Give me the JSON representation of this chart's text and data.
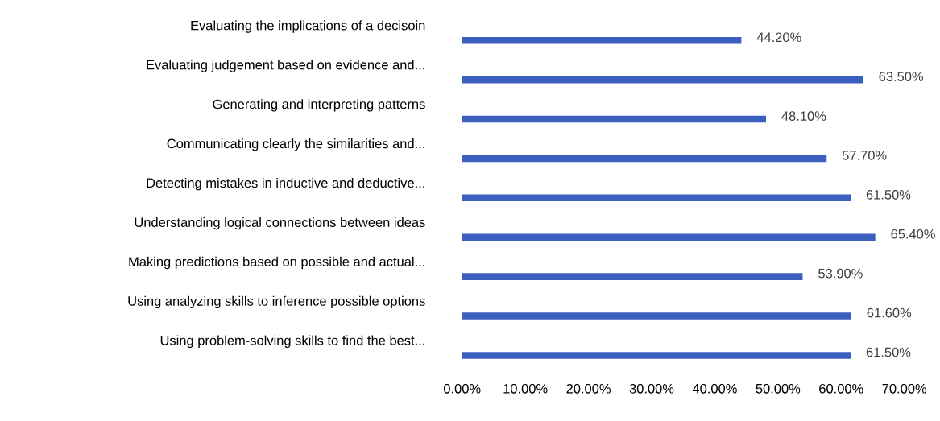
{
  "chart_data": {
    "type": "bar",
    "orientation": "horizontal",
    "color": "#3a5fbf",
    "categories": [
      "Evaluating the implications of a decisoin",
      "Evaluating judgement based on evidence and...",
      "Generating and interpreting patterns",
      "Communicating clearly the similarities and...",
      "Detecting mistakes in inductive and deductive...",
      "Understanding logical connections between ideas",
      "Making predictions based on possible and actual...",
      "Using analyzing skills to inference possible options",
      "Using problem-solving skills to find the best..."
    ],
    "values": [
      44.2,
      63.5,
      48.1,
      57.7,
      61.5,
      65.4,
      53.9,
      61.6,
      61.5
    ],
    "value_labels": [
      "44.20%",
      "63.50%",
      "48.10%",
      "57.70%",
      "61.50%",
      "65.40%",
      "53.90%",
      "61.60%",
      "61.50%"
    ],
    "xlim": [
      0,
      70
    ],
    "xticks": [
      {
        "value": 0,
        "label": "0.00%"
      },
      {
        "value": 10,
        "label": "10.00%"
      },
      {
        "value": 20,
        "label": "20.00%"
      },
      {
        "value": 30,
        "label": "30.00%"
      },
      {
        "value": 40,
        "label": "40.00%"
      },
      {
        "value": 50,
        "label": "50.00%"
      },
      {
        "value": 60,
        "label": "60.00%"
      },
      {
        "value": 70,
        "label": "70.00%"
      }
    ],
    "grid": false
  }
}
